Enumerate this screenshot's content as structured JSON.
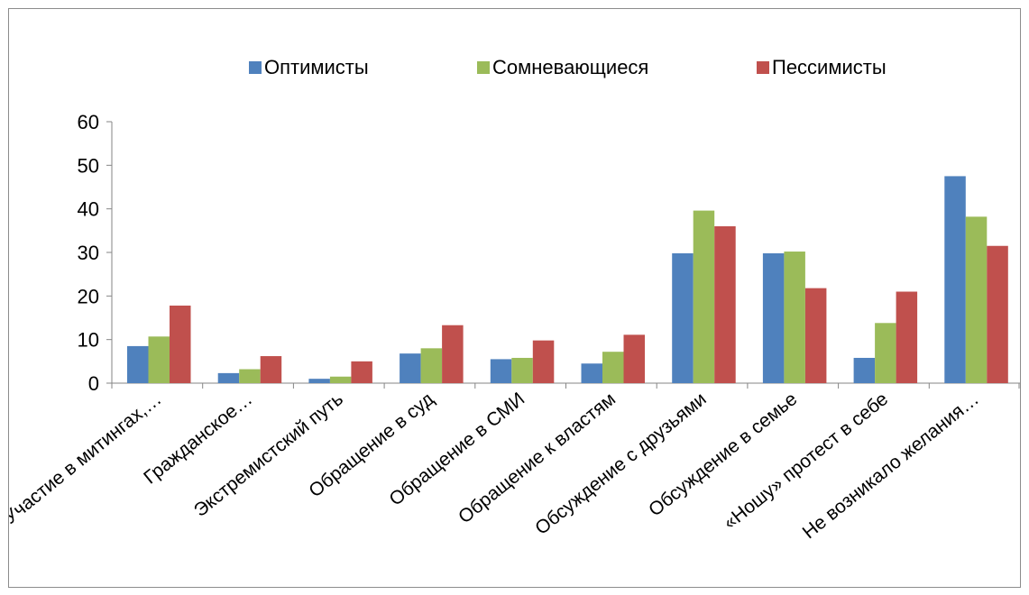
{
  "chart_data": {
    "type": "bar",
    "categories": [
      "Участие в митингах,…",
      "Гражданское…",
      "Экстремистский путь",
      "Обращение в суд",
      "Обращение в СМИ",
      "Обращение к властям",
      "Обсуждение с друзьями",
      "Обсуждение в семье",
      "«Ношу» протест в себе",
      "Не возникало желания…"
    ],
    "series": [
      {
        "name": "Оптимисты",
        "color": "#4f81bd",
        "values": [
          8.5,
          2.3,
          1.0,
          6.8,
          5.5,
          4.5,
          29.8,
          29.8,
          5.8,
          47.5
        ]
      },
      {
        "name": "Сомневающиеся",
        "color": "#9bbb59",
        "values": [
          10.7,
          3.2,
          1.5,
          8.0,
          5.8,
          7.2,
          39.6,
          30.2,
          13.8,
          38.2
        ]
      },
      {
        "name": "Пессимисты",
        "color": "#c0504d",
        "values": [
          17.8,
          6.2,
          5.0,
          13.3,
          9.8,
          11.1,
          36.0,
          21.8,
          21.0,
          31.5
        ]
      }
    ],
    "title": "",
    "xlabel": "",
    "ylabel": "",
    "ylim": [
      0,
      60
    ],
    "yticks": [
      0,
      10,
      20,
      30,
      40,
      50,
      60
    ],
    "grid": false,
    "legend_position": "top"
  }
}
